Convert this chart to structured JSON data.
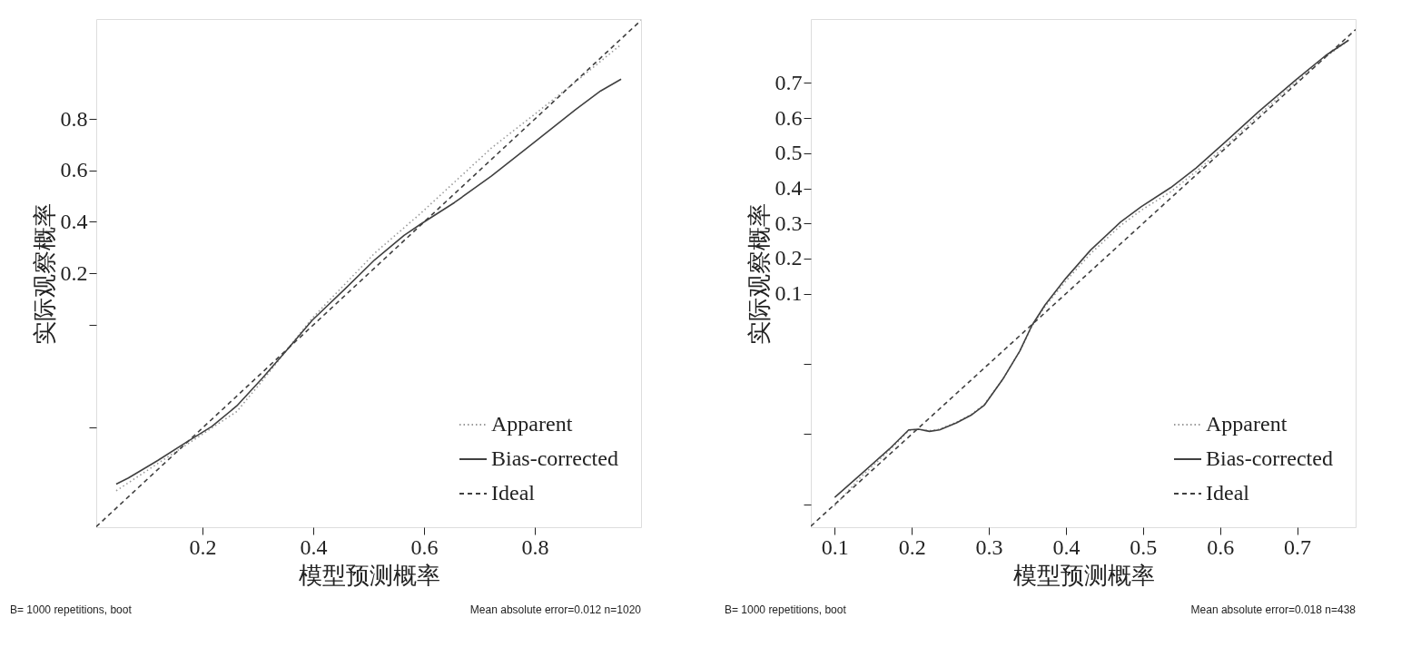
{
  "chart_data": [
    {
      "type": "line",
      "xlabel": "模型预测概率",
      "ylabel": "实际观察概率",
      "annotations": [
        "B= 1000 repetitions, boot",
        "Mean absolute error=0.012 n=1020"
      ],
      "xlim": [
        0.008,
        0.992
      ],
      "ylim": [
        -0.79,
        1.19
      ],
      "xticks": [
        0.2,
        0.4,
        0.6,
        0.8
      ],
      "yticks": [
        0.8,
        0.6,
        0.4,
        0.2,
        {
          "value": 0.0,
          "label": null
        },
        {
          "value": -0.4,
          "label": null
        }
      ],
      "legend": "bottom right",
      "series": [
        {
          "name": "Apparent",
          "color": "#999999",
          "line_style": "dotted",
          "x": [
            0.044,
            0.172,
            0.262,
            0.308,
            0.398,
            0.511,
            0.594,
            0.722,
            0.798,
            0.873,
            0.956
          ],
          "values": [
            -0.648,
            -0.467,
            -0.339,
            -0.219,
            0.024,
            0.278,
            0.433,
            0.688,
            0.816,
            0.944,
            1.091
          ]
        },
        {
          "name": "Bias-corrected",
          "color": "#404040",
          "line_style": "solid",
          "x": [
            0.044,
            0.066,
            0.119,
            0.172,
            0.217,
            0.262,
            0.308,
            0.353,
            0.398,
            0.459,
            0.511,
            0.564,
            0.594,
            0.655,
            0.722,
            0.798,
            0.873,
            0.919,
            0.956
          ],
          "values": [
            -0.622,
            -0.598,
            -0.53,
            -0.457,
            -0.397,
            -0.317,
            -0.209,
            -0.098,
            0.016,
            0.142,
            0.252,
            0.347,
            0.391,
            0.475,
            0.579,
            0.708,
            0.836,
            0.91,
            0.956
          ]
        },
        {
          "name": "Ideal",
          "color": "#404040",
          "line_style": "dashed",
          "x": [
            0.008,
            0.992
          ],
          "values": [
            -0.788,
            1.185
          ]
        }
      ]
    },
    {
      "type": "line",
      "xlabel": "模型预测概率",
      "ylabel": "实际观察概率",
      "annotations": [
        "B= 1000 repetitions, boot",
        "Mean absolute error=0.018 n=438"
      ],
      "xlim": [
        0.069,
        0.776
      ],
      "ylim": [
        -0.565,
        0.882
      ],
      "xticks": [
        0.1,
        0.2,
        0.3,
        0.4,
        0.5,
        0.6,
        0.7
      ],
      "yticks": [
        0.7,
        0.6,
        0.5,
        0.4,
        0.3,
        0.2,
        0.1,
        {
          "value": -0.1,
          "label": null
        },
        {
          "value": -0.3,
          "label": null
        },
        {
          "value": -0.5,
          "label": null
        }
      ],
      "legend": "bottom right",
      "series": [
        {
          "name": "Apparent",
          "color": "#999999",
          "line_style": "dotted",
          "x": [
            0.1,
            0.133,
            0.171,
            0.196,
            0.209,
            0.223,
            0.236,
            0.258,
            0.277,
            0.294,
            0.318,
            0.34,
            0.356,
            0.373,
            0.4,
            0.432,
            0.471,
            0.498,
            0.536,
            0.569,
            0.607,
            0.65,
            0.699,
            0.737,
            0.767
          ],
          "values": [
            -0.504,
            -0.424,
            -0.346,
            -0.29,
            -0.286,
            -0.29,
            -0.286,
            -0.266,
            -0.244,
            -0.216,
            -0.144,
            -0.064,
            0.008,
            0.064,
            0.136,
            0.214,
            0.294,
            0.338,
            0.39,
            0.448,
            0.52,
            0.608,
            0.704,
            0.774,
            0.822
          ]
        },
        {
          "name": "Bias-corrected",
          "color": "#404040",
          "line_style": "solid",
          "x": [
            0.1,
            0.133,
            0.171,
            0.196,
            0.209,
            0.223,
            0.236,
            0.258,
            0.277,
            0.294,
            0.318,
            0.34,
            0.356,
            0.373,
            0.4,
            0.432,
            0.471,
            0.498,
            0.536,
            0.569,
            0.607,
            0.65,
            0.699,
            0.737,
            0.767
          ],
          "values": [
            -0.48,
            -0.416,
            -0.342,
            -0.288,
            -0.286,
            -0.292,
            -0.288,
            -0.268,
            -0.246,
            -0.218,
            -0.144,
            -0.064,
            0.01,
            0.068,
            0.144,
            0.224,
            0.304,
            0.348,
            0.402,
            0.458,
            0.532,
            0.618,
            0.71,
            0.778,
            0.822
          ]
        },
        {
          "name": "Ideal",
          "color": "#404040",
          "line_style": "dashed",
          "x": [
            0.069,
            0.776
          ],
          "values": [
            -0.562,
            0.852
          ]
        }
      ]
    }
  ]
}
